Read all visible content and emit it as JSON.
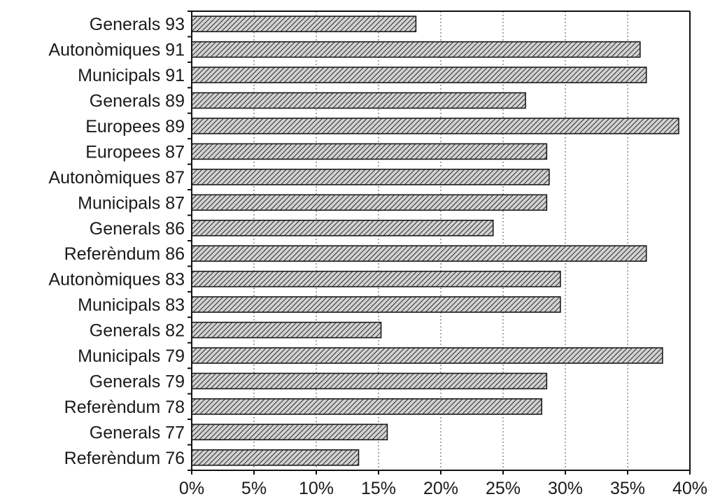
{
  "chart_data": {
    "type": "bar",
    "orientation": "horizontal",
    "categories": [
      "Generals 93",
      "Autonòmiques 91",
      "Municipals 91",
      "Generals 89",
      "Europees 89",
      "Europees 87",
      "Autonòmiques 87",
      "Municipals 87",
      "Generals 86",
      "Referèndum 86",
      "Autonòmiques 83",
      "Municipals 83",
      "Generals 82",
      "Municipals 79",
      "Generals 79",
      "Referèndum 78",
      "Generals 77",
      "Referèndum 76"
    ],
    "values": [
      18,
      36,
      36.5,
      26.8,
      39.1,
      28.5,
      28.7,
      28.5,
      24.2,
      36.5,
      29.6,
      29.6,
      15.2,
      37.8,
      28.5,
      28.1,
      15.7,
      13.4
    ],
    "xlim": [
      0,
      40
    ],
    "x_ticks": [
      "0%",
      "5%",
      "10%",
      "15%",
      "20%",
      "25%",
      "30%",
      "35%",
      "40%"
    ],
    "x_tick_values": [
      0,
      5,
      10,
      15,
      20,
      25,
      30,
      35,
      40
    ],
    "grid": "vertical dotted",
    "title": "",
    "xlabel": "",
    "ylabel": "",
    "bar_fill": "hatched",
    "colors": {
      "bar_base": "#d2d2d2",
      "bar_hatch": "#2a2a2a",
      "axis": "#111111",
      "text": "#1a1a1a"
    }
  }
}
